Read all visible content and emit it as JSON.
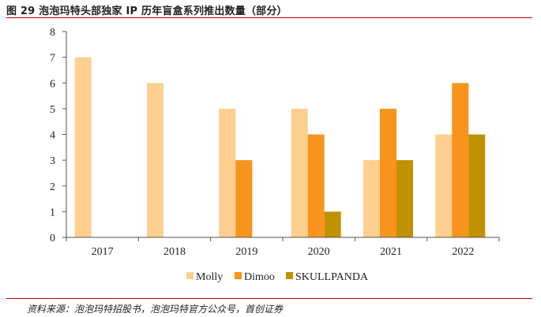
{
  "figure": {
    "title": "图 29 泡泡玛特头部独家 IP 历年盲盒系列推出数量（部分）",
    "source": "资料来源：泡泡玛特招股书，泡泡玛特官方公众号，首创证券"
  },
  "colors": {
    "Molly": "#fdd08f",
    "Dimoo": "#f7941d",
    "SKULLPANDA": "#c09100",
    "rule": "#c00000"
  },
  "chart_data": {
    "type": "bar",
    "categories": [
      "2017",
      "2018",
      "2019",
      "2020",
      "2021",
      "2022"
    ],
    "series": [
      {
        "name": "Molly",
        "values": [
          7,
          6,
          5,
          5,
          3,
          4
        ]
      },
      {
        "name": "Dimoo",
        "values": [
          0,
          0,
          3,
          4,
          5,
          6
        ]
      },
      {
        "name": "SKULLPANDA",
        "values": [
          0,
          0,
          0,
          1,
          3,
          4
        ]
      }
    ],
    "yticks": [
      "0",
      "1",
      "2",
      "3",
      "4",
      "5",
      "6",
      "7",
      "8"
    ],
    "ylim": [
      0,
      8
    ],
    "grid": false,
    "legend_position": "bottom"
  }
}
